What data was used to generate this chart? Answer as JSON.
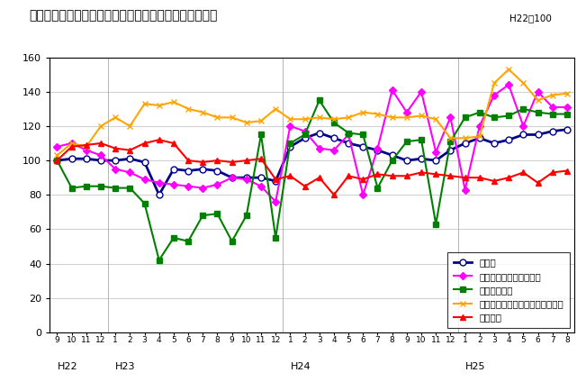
{
  "title": "三重県の主要業種別生産指数の推移（季節調整済指数）",
  "subtitle": "H22＝100",
  "ylim": [
    0,
    160
  ],
  "yticks": [
    0,
    20,
    40,
    60,
    80,
    100,
    120,
    140,
    160
  ],
  "x_month_labels": [
    "9",
    "10",
    "11",
    "12",
    "1",
    "2",
    "3",
    "4",
    "5",
    "6",
    "7",
    "8",
    "9",
    "10",
    "11",
    "12",
    "1",
    "2",
    "3",
    "4",
    "5",
    "6",
    "7",
    "8",
    "9",
    "10",
    "11",
    "12",
    "1",
    "2",
    "3",
    "4",
    "5",
    "6",
    "7",
    "8"
  ],
  "year_labels": [
    {
      "label": "H22",
      "idx": 0
    },
    {
      "label": "H23",
      "idx": 4
    },
    {
      "label": "H24",
      "idx": 16
    },
    {
      "label": "H25",
      "idx": 28
    }
  ],
  "series": [
    {
      "name": "鉱工業",
      "color": "#00008B",
      "marker": "o",
      "mfc": "white",
      "mec": "#00008B",
      "lw": 2.0,
      "ms": 5,
      "values": [
        100,
        101,
        101,
        100,
        100,
        101,
        99,
        80,
        95,
        94,
        95,
        94,
        90,
        90,
        90,
        88,
        108,
        113,
        116,
        113,
        110,
        108,
        106,
        103,
        100,
        101,
        100,
        106,
        110,
        113,
        110,
        112,
        115,
        115,
        117,
        118
      ]
    },
    {
      "name": "電子部品・デバイス工業",
      "color": "#FF00FF",
      "marker": "D",
      "mfc": "#FF00FF",
      "mec": "#FF00FF",
      "lw": 1.5,
      "ms": 4,
      "values": [
        108,
        110,
        106,
        103,
        95,
        93,
        89,
        87,
        86,
        85,
        84,
        86,
        90,
        89,
        85,
        76,
        120,
        117,
        107,
        106,
        115,
        80,
        107,
        141,
        128,
        140,
        105,
        125,
        83,
        120,
        138,
        144,
        120,
        140,
        131,
        131
      ]
    },
    {
      "name": "輸送機械工業",
      "color": "#008000",
      "marker": "s",
      "mfc": "#008000",
      "mec": "#008000",
      "lw": 1.5,
      "ms": 4,
      "values": [
        100,
        84,
        85,
        85,
        84,
        84,
        75,
        42,
        55,
        53,
        68,
        69,
        53,
        68,
        115,
        55,
        110,
        115,
        135,
        122,
        116,
        115,
        84,
        100,
        111,
        112,
        63,
        111,
        125,
        128,
        125,
        126,
        130,
        128,
        127,
        127
      ]
    },
    {
      "name": "はん用・生産用・業務用機械工業",
      "color": "#FFA500",
      "marker": "x",
      "mfc": "#FFA500",
      "mec": "#FFA500",
      "lw": 1.5,
      "ms": 5,
      "values": [
        103,
        110,
        108,
        120,
        125,
        120,
        133,
        132,
        134,
        130,
        128,
        125,
        125,
        122,
        123,
        130,
        124,
        124,
        125,
        124,
        125,
        128,
        127,
        125,
        125,
        126,
        124,
        113,
        113,
        114,
        145,
        153,
        145,
        135,
        138,
        139
      ]
    },
    {
      "name": "化学工業",
      "color": "#FF0000",
      "marker": "^",
      "mfc": "#FF0000",
      "mec": "#FF0000",
      "lw": 1.5,
      "ms": 5,
      "values": [
        100,
        108,
        109,
        110,
        107,
        106,
        110,
        112,
        110,
        100,
        99,
        100,
        99,
        100,
        101,
        89,
        91,
        85,
        90,
        80,
        91,
        89,
        92,
        91,
        91,
        93,
        92,
        91,
        90,
        90,
        88,
        90,
        93,
        87,
        93,
        94
      ]
    }
  ],
  "background_color": "#FFFFFF",
  "grid_color": "#BBBBBB"
}
